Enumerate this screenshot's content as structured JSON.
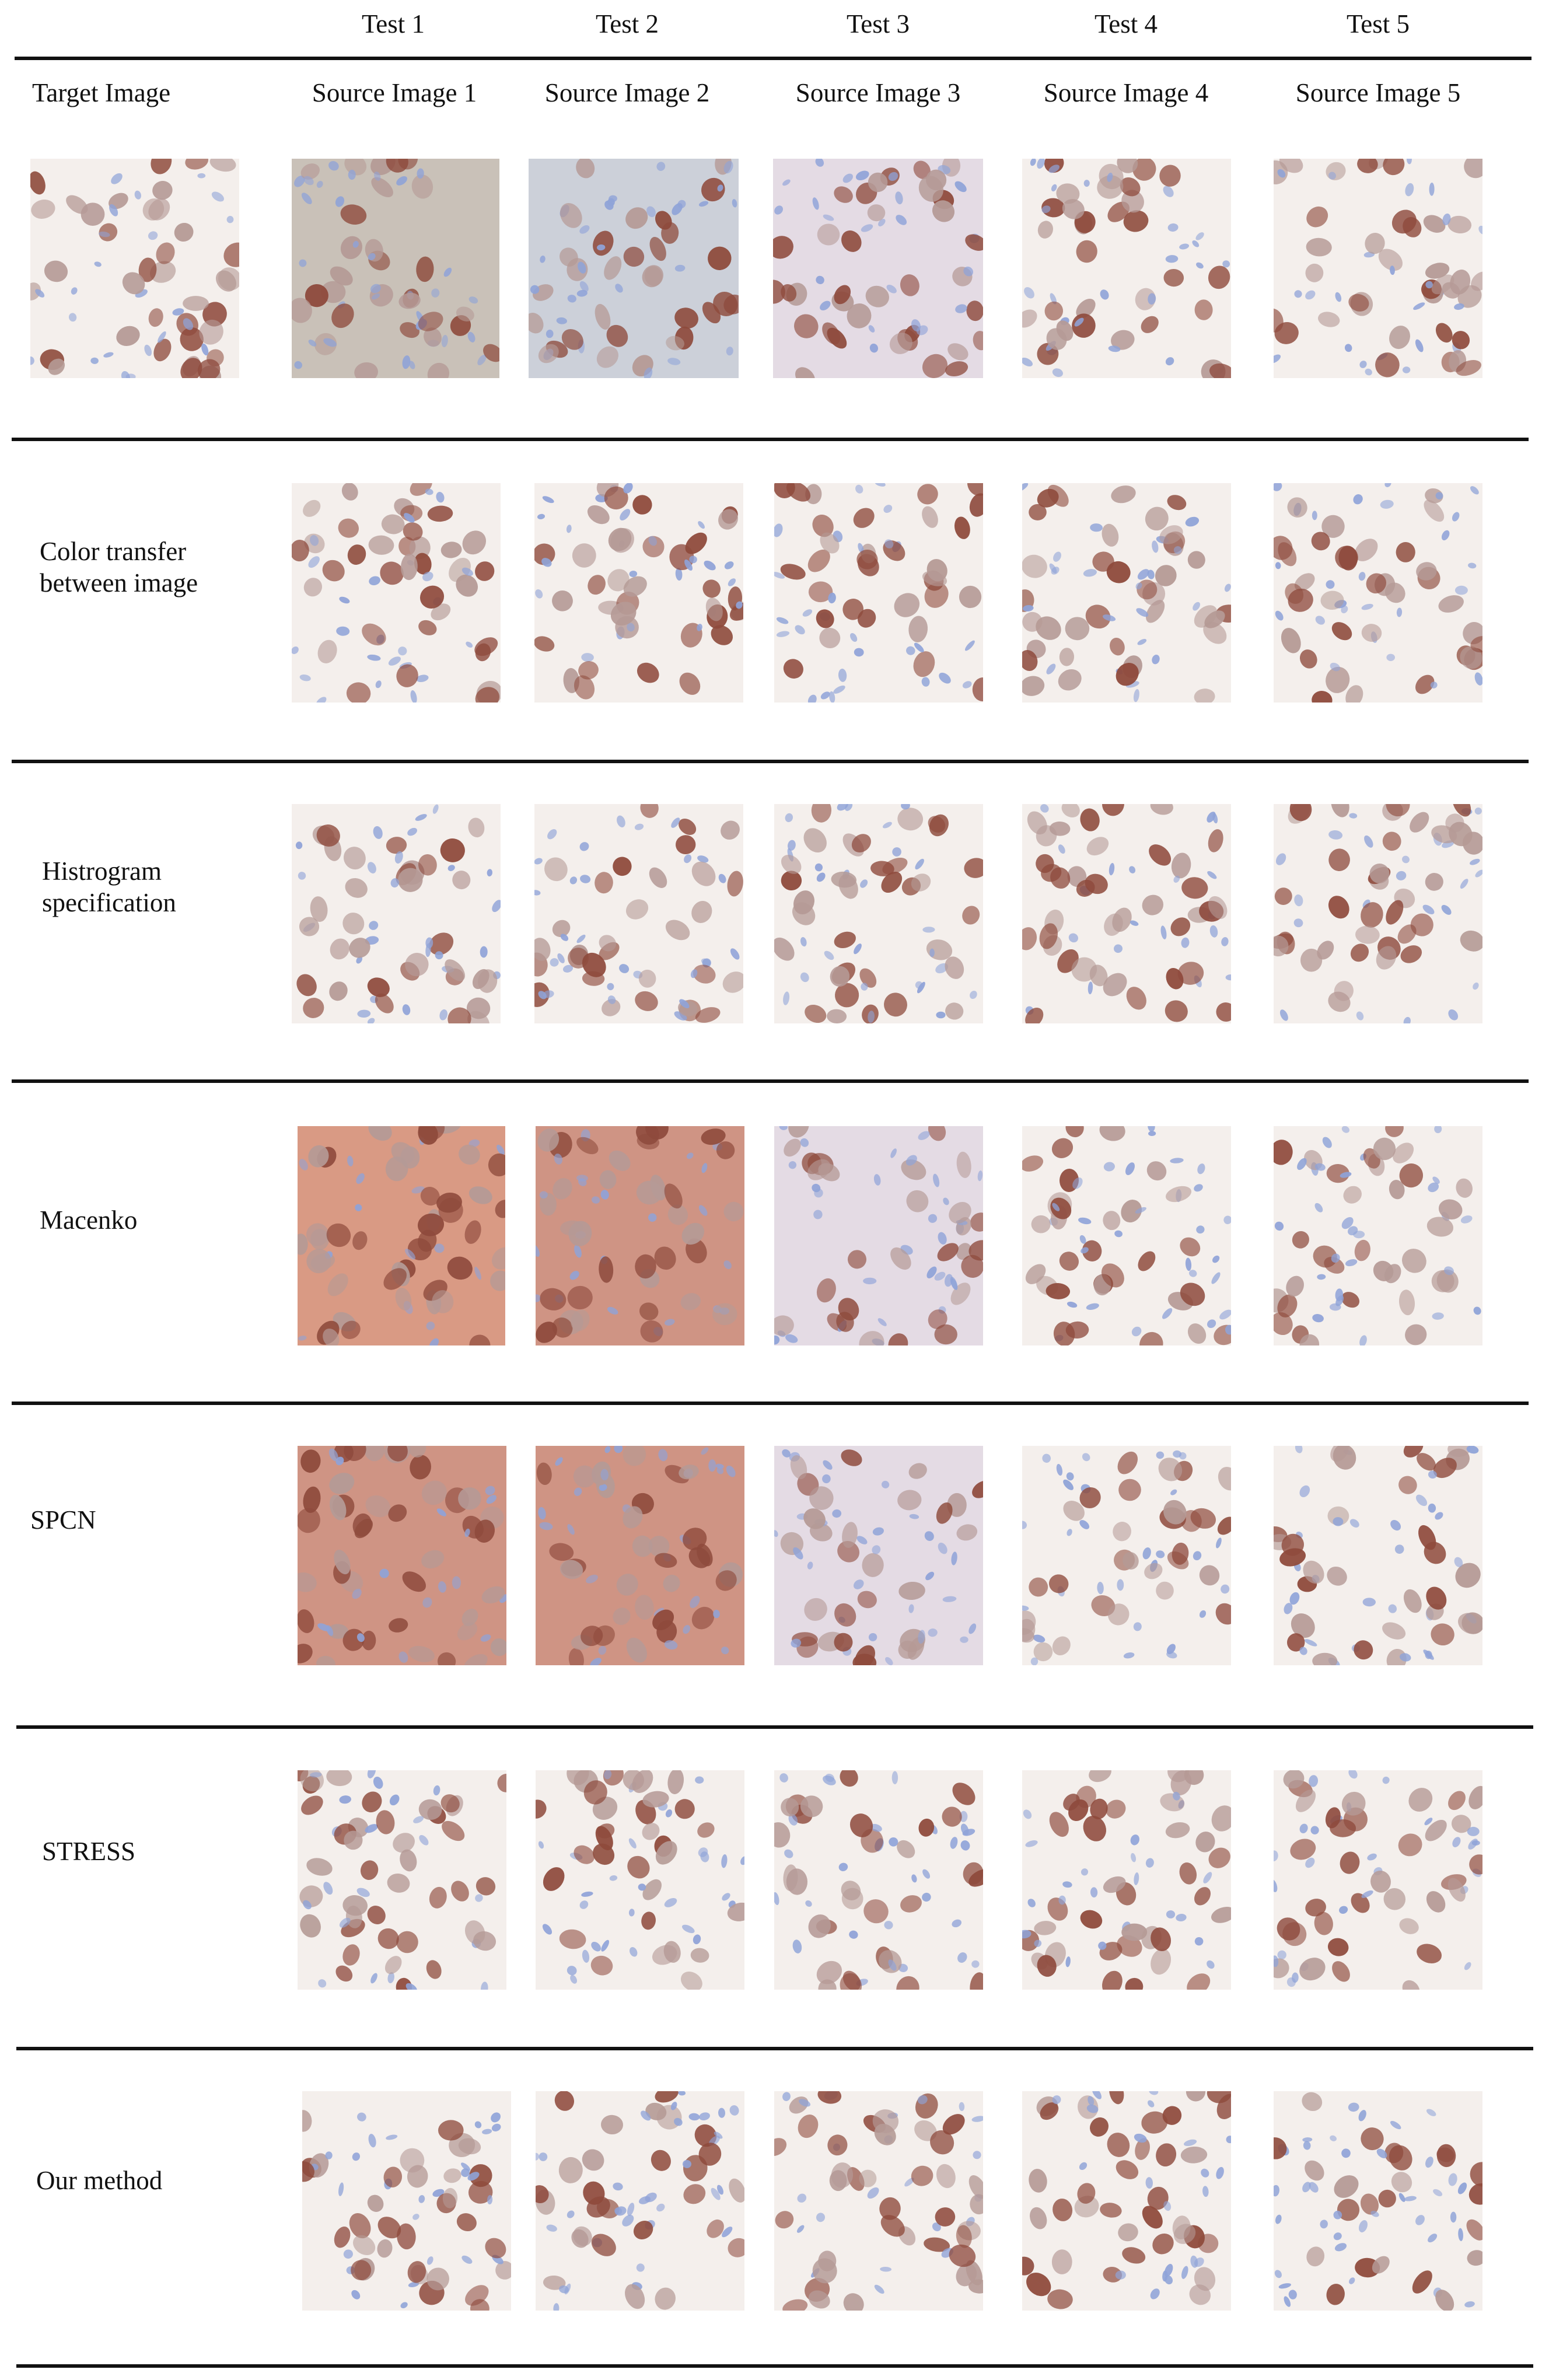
{
  "tests": [
    "Test 1",
    "Test 2",
    "Test 3",
    "Test 4",
    "Test 5"
  ],
  "target_label": "Target Image",
  "sources": [
    "Source Image 1",
    "Source Image 2",
    "Source Image 3",
    "Source Image 4",
    "Source Image 5"
  ],
  "methods": [
    {
      "lines": [
        "Color transfer",
        "between image"
      ]
    },
    {
      "lines": [
        "Histrogram",
        "specification"
      ]
    },
    {
      "lines": [
        "Macenko"
      ]
    },
    {
      "lines": [
        "SPCN"
      ]
    },
    {
      "lines": [
        "STRESS"
      ]
    },
    {
      "lines": [
        "Our method"
      ]
    }
  ],
  "palette": {
    "light_bg": "#f4efec",
    "gray_bg": "#c9c1b8",
    "bluegray_bg": "#ccd0d9",
    "pink_bg": "#d99a84",
    "rose_bg": "#cf9484",
    "lilac_bg": "#e4dbe4",
    "brown_nucleus": "#8e4a3c",
    "pale_nucleus": "#b59a96",
    "blue_nucleus": "#8fa3d8"
  }
}
